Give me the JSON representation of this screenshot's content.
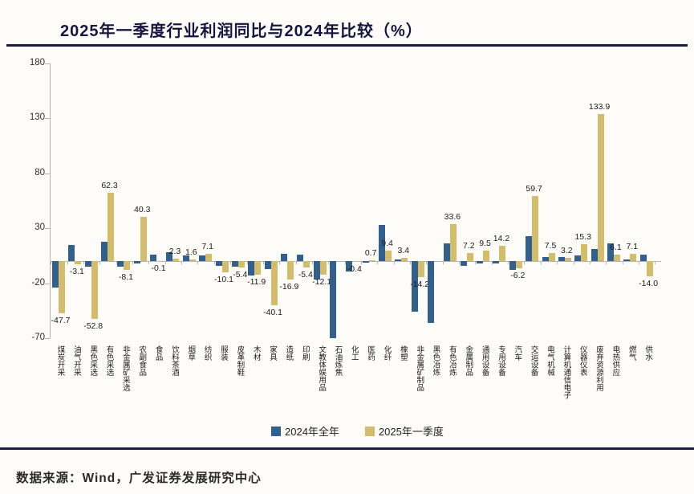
{
  "title": "2025年一季度行业利润同比与2024年比较（%）",
  "footer": {
    "source": "数据来源：Wind，广发证券发展研究中心"
  },
  "legend": [
    {
      "label": "2024年全年",
      "color": "#31608f"
    },
    {
      "label": "2025年一季度",
      "color": "#d3bd6c"
    }
  ],
  "colors": {
    "bar_2024": "#31608f",
    "bar_2025q1": "#d3bd6c",
    "title_navy": "#15153f",
    "rule_navy": "#1c1c44",
    "axis_gray": "#b3b3b3",
    "background": "#fdfcf9"
  },
  "chart_data": {
    "type": "bar",
    "title": "2025年一季度行业利润同比与2024年比较（%）",
    "xlabel": "",
    "ylabel": "",
    "ylim": [
      -70,
      180
    ],
    "yticks": [
      180,
      130,
      80,
      30,
      -20,
      -70
    ],
    "grid": false,
    "legend_position": "bottom",
    "categories": [
      "煤炭开采",
      "油气开采",
      "黑色采选",
      "有色采选",
      "非金属矿采选",
      "农副食品",
      "食品",
      "饮料茶酒",
      "烟草",
      "纺织",
      "服装",
      "皮革制鞋",
      "木材",
      "家具",
      "造纸",
      "印刷",
      "文教体娱用品",
      "石油炼焦",
      "化工",
      "医药",
      "化纤",
      "橡塑",
      "非金属矿制品",
      "黑色冶炼",
      "有色冶炼",
      "金属制品",
      "通用设备",
      "专用设备",
      "汽车",
      "交运设备",
      "电气机械",
      "计算机通信电子",
      "仪器仪表",
      "废弃资源利用",
      "电热供应",
      "燃气",
      "供水"
    ],
    "series": [
      {
        "name": "2024年全年",
        "color": "#31608f",
        "values": [
          -24,
          15,
          -5,
          17.5,
          -5,
          -2,
          6,
          8,
          5,
          5,
          -4,
          -5,
          -13,
          -7,
          7,
          6,
          -17,
          -70,
          -9,
          -1,
          33,
          2,
          -46,
          -56,
          16,
          -4,
          -2,
          -2,
          -8,
          23,
          4,
          4,
          5,
          11,
          16,
          2,
          6
        ]
      },
      {
        "name": "2025年一季度",
        "color": "#d3bd6c",
        "values": [
          -47.7,
          -3.1,
          -52.8,
          62.3,
          -8.1,
          40.3,
          -0.1,
          2.3,
          1.6,
          7.1,
          -10.1,
          -5.4,
          -11.9,
          -40.1,
          -16.9,
          -5.4,
          -12.1,
          null,
          -0.4,
          0.7,
          9.4,
          3.4,
          -14.2,
          null,
          33.6,
          7.2,
          9.5,
          14.2,
          -6.2,
          59.7,
          7.5,
          3.2,
          15.3,
          133.9,
          6.1,
          7.1,
          -14.0
        ]
      }
    ],
    "data_labels": [
      "-47.7",
      "-3.1",
      "-52.8",
      "62.3",
      "-8.1",
      "40.3",
      "-0.1",
      "2.3",
      "1.6",
      "7.1",
      "-10.1",
      "-5.4",
      "-11.9",
      "-40.1",
      "-16.9",
      "-5.4",
      "-12.1",
      null,
      "-0.4",
      "0.7",
      "9.4",
      "3.4",
      "-14.2",
      null,
      "33.6",
      "7.2",
      "9.5",
      "14.2",
      "-6.2",
      "59.7",
      "7.5",
      "3.2",
      "15.3",
      "133.9",
      "6.1",
      "7.1",
      "-14.0"
    ],
    "data_labels_series": "2025年一季度"
  }
}
